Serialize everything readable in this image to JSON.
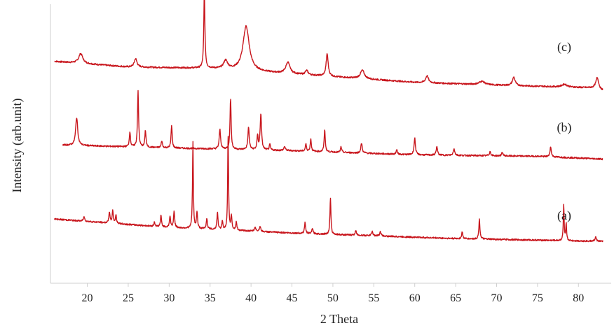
{
  "chart_data": {
    "type": "line",
    "title": "",
    "xlabel": "2 Theta",
    "ylabel": "Intensity (arb.unit)",
    "xlim": [
      15.5,
      84
    ],
    "x_ticks": [
      20,
      25,
      30,
      35,
      40,
      45,
      50,
      55,
      60,
      65,
      70,
      75,
      80
    ],
    "ylim": [
      0,
      100
    ],
    "grid": false,
    "legend": "none",
    "line_color": "#c8161d",
    "series": [
      {
        "label": "(c)",
        "baseline": [
          [
            16,
            79.5
          ],
          [
            25,
            77.5
          ],
          [
            35,
            77
          ],
          [
            50,
            74
          ],
          [
            60,
            72
          ],
          [
            70,
            71
          ],
          [
            82,
            70
          ],
          [
            83,
            69
          ]
        ],
        "peaks": [
          [
            19.2,
            3.5,
            0.3
          ],
          [
            25.9,
            3,
            0.2
          ],
          [
            34.3,
            28,
            0.08
          ],
          [
            36.9,
            3,
            0.3
          ],
          [
            39.4,
            16,
            0.45
          ],
          [
            44.5,
            4,
            0.3
          ],
          [
            46.8,
            1.5,
            0.2
          ],
          [
            49.3,
            8,
            0.15
          ],
          [
            53.6,
            3,
            0.3
          ],
          [
            61.5,
            2.5,
            0.2
          ],
          [
            68.2,
            1.2,
            0.4
          ],
          [
            72.1,
            3,
            0.2
          ],
          [
            78.3,
            1,
            0.4
          ],
          [
            82.3,
            4,
            0.2
          ]
        ]
      },
      {
        "label": "(b)",
        "baseline": [
          [
            17,
            49.5
          ],
          [
            30,
            48.5
          ],
          [
            45,
            47.5
          ],
          [
            60,
            46
          ],
          [
            75,
            45.5
          ],
          [
            83,
            44.5
          ]
        ],
        "peaks": [
          [
            18.7,
            10,
            0.15
          ],
          [
            25.2,
            5.5,
            0.08
          ],
          [
            26.2,
            20,
            0.08
          ],
          [
            27.1,
            6,
            0.08
          ],
          [
            29.1,
            2.5,
            0.08
          ],
          [
            30.3,
            8,
            0.08
          ],
          [
            36.2,
            7,
            0.1
          ],
          [
            37.5,
            18,
            0.08
          ],
          [
            39.7,
            8,
            0.1
          ],
          [
            40.8,
            5,
            0.08
          ],
          [
            41.2,
            13,
            0.1
          ],
          [
            42.3,
            2,
            0.08
          ],
          [
            44.1,
            1.5,
            0.1
          ],
          [
            46.7,
            2.5,
            0.08
          ],
          [
            47.3,
            4.5,
            0.08
          ],
          [
            49.0,
            8,
            0.08
          ],
          [
            51.0,
            2,
            0.08
          ],
          [
            53.5,
            3.5,
            0.1
          ],
          [
            57.8,
            1.5,
            0.1
          ],
          [
            60.0,
            6,
            0.1
          ],
          [
            62.7,
            3,
            0.1
          ],
          [
            64.8,
            2.5,
            0.1
          ],
          [
            69.2,
            1.5,
            0.1
          ],
          [
            70.7,
            1.2,
            0.1
          ],
          [
            76.6,
            3.5,
            0.1
          ]
        ]
      },
      {
        "label": "(a)",
        "baseline": [
          [
            16,
            23
          ],
          [
            30,
            20
          ],
          [
            45,
            18
          ],
          [
            55,
            17
          ],
          [
            65,
            16
          ],
          [
            83,
            15
          ]
        ],
        "peaks": [
          [
            19.6,
            1.5,
            0.1
          ],
          [
            22.7,
            4,
            0.08
          ],
          [
            23.1,
            4.5,
            0.08
          ],
          [
            23.5,
            3,
            0.08
          ],
          [
            28.2,
            1.5,
            0.08
          ],
          [
            29.0,
            4,
            0.08
          ],
          [
            30.1,
            4,
            0.08
          ],
          [
            30.6,
            6,
            0.08
          ],
          [
            32.9,
            31,
            0.06
          ],
          [
            33.4,
            6,
            0.08
          ],
          [
            34.6,
            4,
            0.08
          ],
          [
            35.9,
            6,
            0.08
          ],
          [
            36.5,
            3,
            0.08
          ],
          [
            37.2,
            34,
            0.06
          ],
          [
            37.6,
            5,
            0.08
          ],
          [
            38.2,
            3,
            0.08
          ],
          [
            40.5,
            1.5,
            0.1
          ],
          [
            41.1,
            1.8,
            0.1
          ],
          [
            46.6,
            4,
            0.08
          ],
          [
            47.5,
            2,
            0.08
          ],
          [
            49.7,
            13,
            0.07
          ],
          [
            52.8,
            1.5,
            0.1
          ],
          [
            54.8,
            1.5,
            0.1
          ],
          [
            55.8,
            1.5,
            0.1
          ],
          [
            65.8,
            2.5,
            0.08
          ],
          [
            67.9,
            7,
            0.08
          ],
          [
            78.2,
            13,
            0.06
          ],
          [
            78.5,
            6,
            0.06
          ],
          [
            82.1,
            1.5,
            0.1
          ]
        ]
      }
    ]
  }
}
